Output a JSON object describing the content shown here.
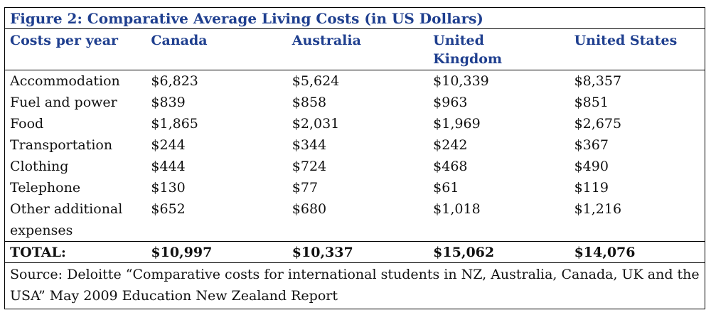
{
  "title": "Figure 2: Comparative Average Living Costs (in US Dollars)",
  "headers": [
    "Costs per year",
    "Canada",
    "Australia",
    "United Kingdom",
    "United States"
  ],
  "rows": [
    [
      "Accommodation",
      "$6,823",
      "$5,624",
      "$10,339",
      "$8,357"
    ],
    [
      "Fuel and power",
      "$839",
      "$858",
      "$963",
      "$851"
    ],
    [
      "Food",
      "$1,865",
      "$2,031",
      "$1,969",
      "$2,675"
    ],
    [
      "Transportation",
      "$244",
      "$344",
      "$242",
      "$367"
    ],
    [
      "Clothing",
      "$444",
      "$724",
      "$468",
      "$490"
    ],
    [
      "Telephone",
      "$130",
      "$77",
      "$61",
      "$119"
    ],
    [
      "Other additional expenses",
      "$652",
      "$680",
      "$1,018",
      "$1,216"
    ]
  ],
  "total": [
    "TOTAL:",
    "$10,997",
    "$10,337",
    "$15,062",
    "$14,076"
  ],
  "source": "Source: Deloitte “Comparative costs for international students in NZ, Australia, Canada, UK and the USA” May 2009 Education New Zealand Report"
}
